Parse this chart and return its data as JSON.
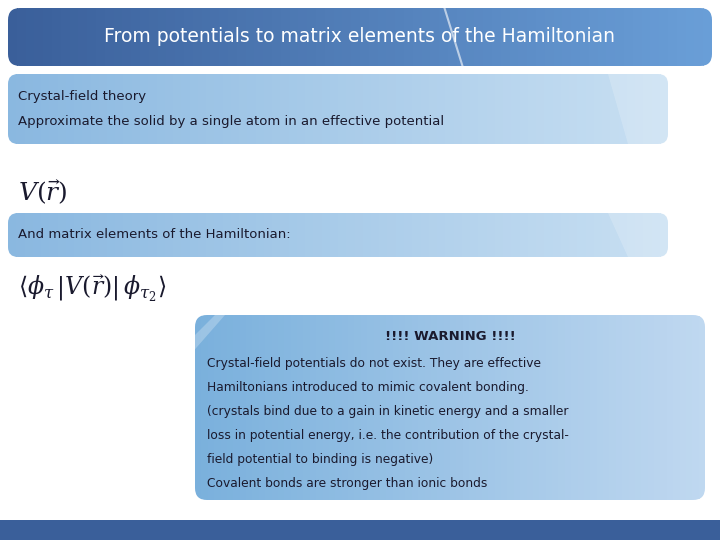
{
  "title": "From potentials to matrix elements of the Hamiltonian",
  "title_bg_left": "#3a5f9a",
  "title_bg_right": "#6a9fd8",
  "title_color": "#ffffff",
  "title_fontsize": 13.5,
  "box1_text_line1": "Crystal-field theory",
  "box1_text_line2": "Approximate the solid by a single atom in an effective potential",
  "box1_bg_left": "#8ab8e0",
  "box1_bg_right": "#c8dff2",
  "box1_color": "#1a1a2e",
  "box2_text": "And matrix elements of the Hamiltonian:",
  "box2_bg_left": "#8ab8e0",
  "box2_bg_right": "#c8dff2",
  "box2_color": "#1a1a2e",
  "warning_title": "!!!! WARNING !!!!",
  "warning_lines": [
    "Crystal-field potentials do not exist. They are effective",
    "Hamiltonians introduced to mimic covalent bonding.",
    "(crystals bind due to a gain in kinetic energy and a smaller",
    "loss in potential energy, i.e. the contribution of the crystal-",
    "field potential to binding is negative)",
    "Covalent bonds are stronger than ionic bonds"
  ],
  "warning_bg_left": "#7ab0dc",
  "warning_bg_right": "#c0d8f0",
  "warning_color": "#1a1a2e",
  "bg_color": "#ffffff",
  "bottom_bar_color": "#3a5f9a",
  "formula1": "$V(\\vec{r})$",
  "formula2": "$\\langle \\phi_{\\tau} \\, |V(\\vec{r})| \\, \\phi_{\\tau_2} \\rangle$"
}
